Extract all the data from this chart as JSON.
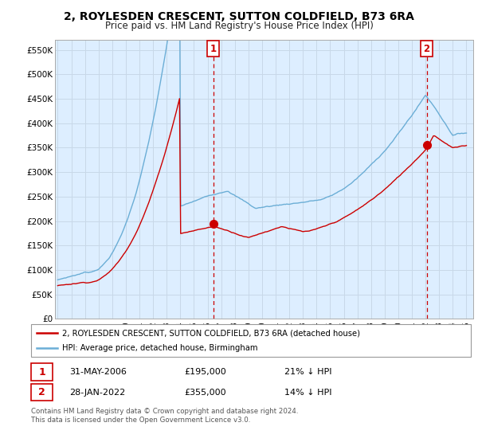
{
  "title": "2, ROYLESDEN CRESCENT, SUTTON COLDFIELD, B73 6RA",
  "subtitle": "Price paid vs. HM Land Registry's House Price Index (HPI)",
  "title_fontsize": 10,
  "subtitle_fontsize": 8.5,
  "hpi_color": "#6baed6",
  "price_color": "#cc0000",
  "marker_color": "#cc0000",
  "vline_color": "#cc0000",
  "chart_bg": "#ddeeff",
  "ylim": [
    0,
    570000
  ],
  "yticks": [
    0,
    50000,
    100000,
    150000,
    200000,
    250000,
    300000,
    350000,
    400000,
    450000,
    500000,
    550000
  ],
  "ytick_labels": [
    "£0",
    "£50K",
    "£100K",
    "£150K",
    "£200K",
    "£250K",
    "£300K",
    "£350K",
    "£400K",
    "£450K",
    "£500K",
    "£550K"
  ],
  "sale1_date": 2006.41,
  "sale1_price": 195000,
  "sale1_label": "1",
  "sale2_date": 2022.08,
  "sale2_price": 355000,
  "sale2_label": "2",
  "legend_line1": "2, ROYLESDEN CRESCENT, SUTTON COLDFIELD, B73 6RA (detached house)",
  "legend_line2": "HPI: Average price, detached house, Birmingham",
  "table_row1": [
    "1",
    "31-MAY-2006",
    "£195,000",
    "21% ↓ HPI"
  ],
  "table_row2": [
    "2",
    "28-JAN-2022",
    "£355,000",
    "14% ↓ HPI"
  ],
  "footnote": "Contains HM Land Registry data © Crown copyright and database right 2024.\nThis data is licensed under the Open Government Licence v3.0.",
  "background_color": "#ffffff",
  "grid_color": "#c8d8e8"
}
